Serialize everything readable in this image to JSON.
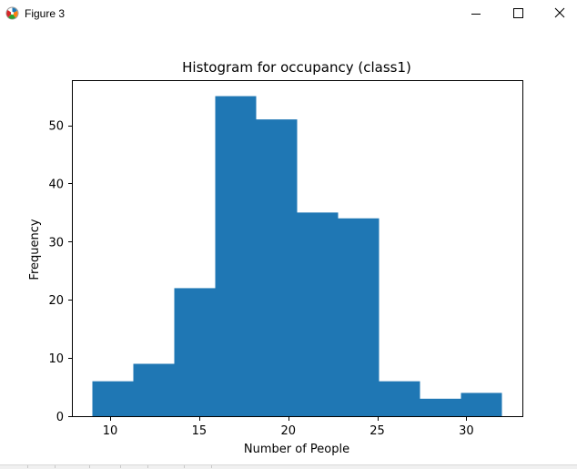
{
  "window": {
    "title": "Figure 3"
  },
  "colors": {
    "bar": "#1f77b4",
    "axis": "#000000",
    "background": "#ffffff"
  },
  "chart_data": {
    "type": "bar",
    "title": "Histogram for occupancy (class1)",
    "xlabel": "Number of People",
    "ylabel": "Frequency",
    "bin_edges": [
      9,
      11.3,
      13.6,
      15.9,
      18.2,
      20.5,
      22.8,
      25.1,
      27.4,
      29.7,
      32
    ],
    "values": [
      6,
      9,
      22,
      55,
      51,
      35,
      34,
      6,
      3,
      4
    ],
    "xlim": [
      7.85,
      33.15
    ],
    "ylim": [
      0,
      57.75
    ],
    "xticks": [
      10,
      15,
      20,
      25,
      30
    ],
    "yticks": [
      0,
      10,
      20,
      30,
      40,
      50
    ],
    "grid": false,
    "legend": "none"
  }
}
